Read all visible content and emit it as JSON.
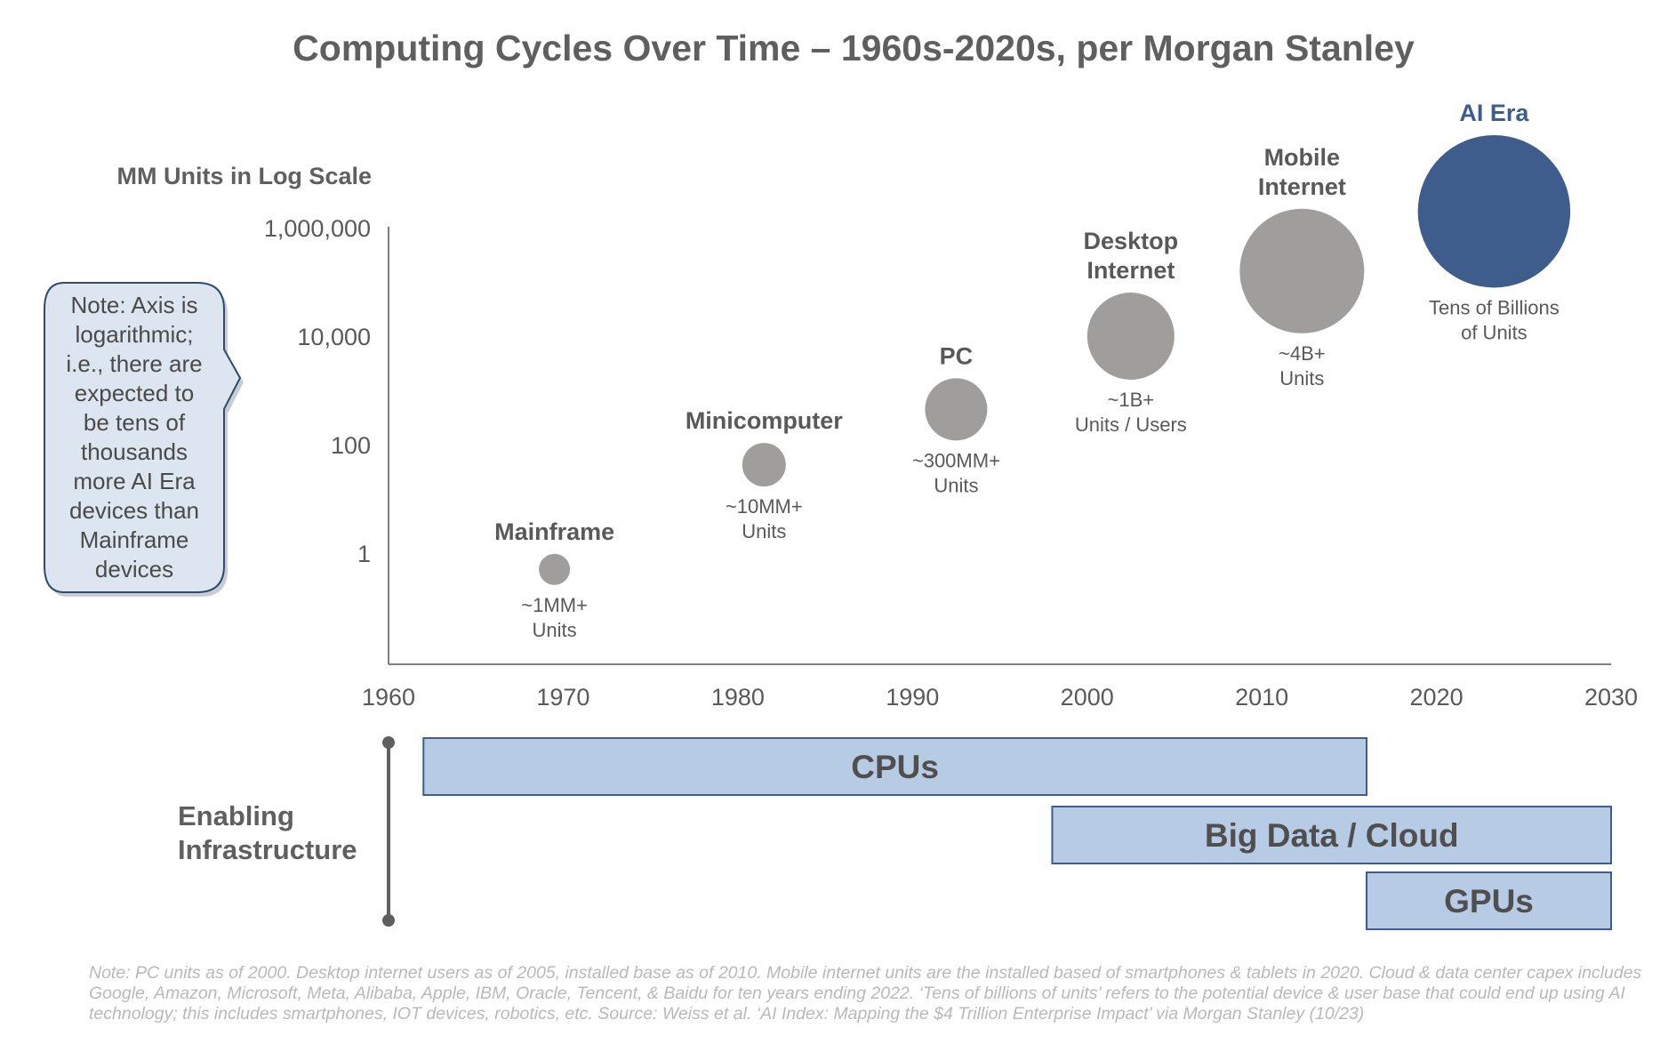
{
  "title": "Computing Cycles Over Time – 1960s-2020s, per Morgan Stanley",
  "chart_data": {
    "type": "scatter",
    "title": "Computing Cycles Over Time – 1960s-2020s, per Morgan Stanley",
    "ylabel": "MM Units in Log Scale",
    "xlabel": "",
    "yscale": "log",
    "xlim": [
      1960,
      2030
    ],
    "x_ticks": [
      "1960",
      "1970",
      "1980",
      "1990",
      "2000",
      "2010",
      "2020",
      "2030"
    ],
    "y_ticks": [
      "1,000,000",
      "10,000",
      "100",
      "1"
    ],
    "eras": [
      {
        "name": [
          "Mainframe"
        ],
        "year": 1969.5,
        "value_log10": -0.3,
        "units_label": [
          "~1MM+",
          "Units"
        ],
        "relative_size": 1,
        "color": "#a09d9d"
      },
      {
        "name": [
          "Minicomputer"
        ],
        "year": 1981.5,
        "value_log10": 1.63,
        "units_label": [
          "~10MM+",
          "Units"
        ],
        "relative_size": 1.4,
        "color": "#a09d9d"
      },
      {
        "name": [
          "PC"
        ],
        "year": 1992.5,
        "value_log10": 2.65,
        "units_label": [
          "~300MM+",
          "Units"
        ],
        "relative_size": 2.0,
        "color": "#a09d9d"
      },
      {
        "name": [
          "Desktop",
          "Internet"
        ],
        "year": 2002.5,
        "value_log10": 4.0,
        "units_label": [
          "~1B+",
          "Units / Users"
        ],
        "relative_size": 2.8,
        "color": "#a09d9d"
      },
      {
        "name": [
          "Mobile",
          "Internet"
        ],
        "year": 2012.3,
        "value_log10": 5.2,
        "units_label": [
          "~4B+",
          "Units"
        ],
        "relative_size": 4.0,
        "color": "#a09d9d"
      },
      {
        "name": [
          "AI Era"
        ],
        "year": 2023.3,
        "value_log10": 6.3,
        "units_label": [
          "Tens of Billions",
          "of Units"
        ],
        "relative_size": 4.9,
        "color": "#3f5d8c"
      }
    ]
  },
  "callout": {
    "lines": [
      "Note: Axis is",
      "logarithmic;",
      "i.e., there are",
      "expected to",
      "be tens of",
      "thousands",
      "more AI Era",
      "devices than",
      "Mainframe",
      "devices"
    ]
  },
  "infrastructure": {
    "label": [
      "Enabling",
      "Infrastructure"
    ],
    "bars": [
      {
        "label": "CPUs",
        "start": 1962,
        "end": 2016
      },
      {
        "label": "Big Data / Cloud",
        "start": 1998,
        "end": 2030
      },
      {
        "label": "GPUs",
        "start": 2016,
        "end": 2030
      }
    ]
  },
  "footnote": "Note: PC units as of 2000. Desktop internet users as of 2005, installed base as of 2010. Mobile internet units are the installed based of smartphones & tablets in 2020. Cloud & data center capex includes Google, Amazon, Microsoft, Meta, Alibaba, Apple, IBM, Oracle, Tencent, & Baidu for ten years ending 2022. ‘Tens of billions of units’ refers to the potential device & user base that could end up using AI technology; this includes smartphones, IOT devices, robotics, etc. Source: Weiss et al. ‘AI Index: Mapping the $4 Trillion Enterprise Impact’ via Morgan Stanley (10/23)",
  "colors": {
    "bubble_gray": "#a09d9d",
    "ai_blue": "#3f5d8c",
    "bar_fill": "#b8cbe4",
    "bar_border": "#3f5d8c",
    "callout_fill": "#dce5f0",
    "callout_border": "#2e4a6e"
  }
}
